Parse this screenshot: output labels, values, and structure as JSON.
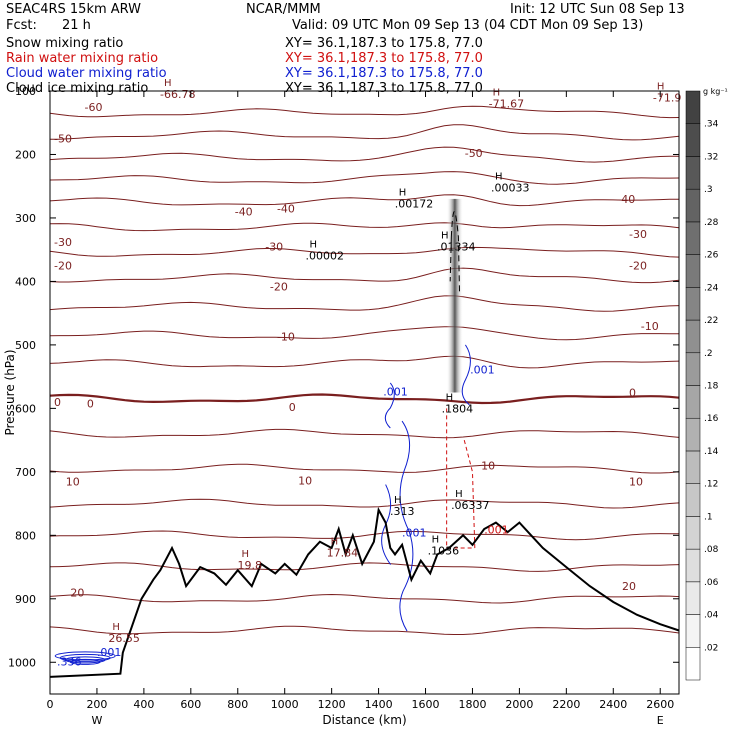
{
  "header": {
    "model": "SEAC4RS 15km ARW",
    "center": "NCAR/MMM",
    "init": "Init: 12 UTC Sun 08 Sep 13",
    "fcst_label": "Fcst:",
    "fcst_value": "21 h",
    "valid": "Valid: 09 UTC Mon 09 Sep 13 (04 CDT Mon 09 Sep 13)"
  },
  "fields": [
    {
      "name": "Snow mixing ratio",
      "xy": "XY=  36.1,187.3 to 175.8, 77.0",
      "color": "#000000"
    },
    {
      "name": "Rain water mixing ratio",
      "xy": "XY=  36.1,187.3 to 175.8, 77.0",
      "color": "#d01010"
    },
    {
      "name": "Cloud water mixing ratio",
      "xy": "XY=  36.1,187.3 to 175.8, 77.0",
      "color": "#1020d0"
    },
    {
      "name": "Cloud ice mixing ratio",
      "xy": "XY=  36.1,187.3 to 175.8, 77.0",
      "color": "#000000"
    }
  ],
  "chart_data": {
    "type": "cross-section contour",
    "xlabel": "Distance (km)",
    "ylabel": "Pressure (hPa)",
    "xlim": [
      0,
      2680
    ],
    "ylim_pressure": [
      100,
      1050
    ],
    "x_ticks": [
      "0",
      "200",
      "400",
      "600",
      "800",
      "1000",
      "1200",
      "1400",
      "1600",
      "1800",
      "2000",
      "2200",
      "2400",
      "2600"
    ],
    "y_ticks": [
      "100",
      "200",
      "300",
      "400",
      "500",
      "600",
      "700",
      "800",
      "900",
      "1000"
    ],
    "x_end_labels": {
      "left": "W",
      "right": "E"
    },
    "colorbar": {
      "unit": "g kg⁻¹",
      "ticks": [
        ".02",
        ".04",
        ".06",
        ".08",
        ".1",
        ".12",
        ".14",
        ".16",
        ".18",
        ".2",
        ".22",
        ".24",
        ".26",
        ".28",
        ".3",
        ".32",
        ".34"
      ]
    },
    "temperature_labels": [
      {
        "text": "-60",
        "x": 130,
        "p": 125
      },
      {
        "text": "-50",
        "x": 1750,
        "p": 198
      },
      {
        "text": "-50",
        "x": 0,
        "p": 175
      },
      {
        "text": "-40",
        "x": 770,
        "p": 290
      },
      {
        "text": "-40",
        "x": 950,
        "p": 285
      },
      {
        "text": "-40",
        "x": 2400,
        "p": 270
      },
      {
        "text": "-30",
        "x": 0,
        "p": 338
      },
      {
        "text": "-30",
        "x": 900,
        "p": 345
      },
      {
        "text": "-30",
        "x": 2450,
        "p": 325
      },
      {
        "text": "-20",
        "x": 0,
        "p": 375
      },
      {
        "text": "-20",
        "x": 920,
        "p": 408
      },
      {
        "text": "-20",
        "x": 2450,
        "p": 375
      },
      {
        "text": "-10",
        "x": 950,
        "p": 487
      },
      {
        "text": "-10",
        "x": 2500,
        "p": 470
      },
      {
        "text": "0",
        "x": 0,
        "p": 590
      },
      {
        "text": "0",
        "x": 140,
        "p": 592
      },
      {
        "text": "0",
        "x": 1000,
        "p": 598
      },
      {
        "text": "0",
        "x": 2450,
        "p": 575
      },
      {
        "text": "10",
        "x": 50,
        "p": 715
      },
      {
        "text": "10",
        "x": 1040,
        "p": 714
      },
      {
        "text": "10",
        "x": 1820,
        "p": 690
      },
      {
        "text": "10",
        "x": 2450,
        "p": 715
      },
      {
        "text": "20",
        "x": 70,
        "p": 890
      },
      {
        "text": "20",
        "x": 2420,
        "p": 880
      }
    ],
    "max_labels": [
      {
        "text": "-66.78",
        "x": 520,
        "p": 108
      },
      {
        "text": "-71.67",
        "x": 1920,
        "p": 123
      },
      {
        "text": "-71.9",
        "x": 2620,
        "p": 113
      },
      {
        "text": ".00172",
        "x": 1520,
        "p": 280
      },
      {
        "text": ".00033",
        "x": 1930,
        "p": 255
      },
      {
        "text": ".00002",
        "x": 1140,
        "p": 362
      },
      {
        "text": ".01334",
        "x": 1700,
        "p": 348
      },
      {
        "text": ".1804",
        "x": 1720,
        "p": 603
      },
      {
        "text": ".06337",
        "x": 1760,
        "p": 755
      },
      {
        "text": ".313",
        "x": 1500,
        "p": 765
      },
      {
        "text": ".1036",
        "x": 1660,
        "p": 827
      },
      {
        "text": "19.8",
        "x": 850,
        "p": 850
      },
      {
        "text": "17.84",
        "x": 1230,
        "p": 830
      },
      {
        "text": "26.55",
        "x": 300,
        "p": 965
      }
    ],
    "cloud_water_labels": [
      {
        "text": ".001",
        "x": 1420,
        "p": 580
      },
      {
        "text": ".001",
        "x": 1790,
        "p": 545
      },
      {
        "text": ".001",
        "x": 1500,
        "p": 802
      },
      {
        "text": ".001",
        "x": 200,
        "p": 990
      },
      {
        "text": ".336",
        "x": 30,
        "p": 1005
      }
    ],
    "rain_labels": [
      {
        "text": ".001",
        "x": 1850,
        "p": 797
      }
    ],
    "terrain_p": [
      [
        0,
        1023
      ],
      [
        300,
        1018
      ],
      [
        310,
        985
      ],
      [
        390,
        900
      ],
      [
        440,
        870
      ],
      [
        470,
        855
      ],
      [
        520,
        820
      ],
      [
        550,
        845
      ],
      [
        580,
        880
      ],
      [
        640,
        850
      ],
      [
        700,
        860
      ],
      [
        750,
        878
      ],
      [
        800,
        855
      ],
      [
        860,
        880
      ],
      [
        900,
        845
      ],
      [
        960,
        860
      ],
      [
        1000,
        845
      ],
      [
        1050,
        862
      ],
      [
        1100,
        830
      ],
      [
        1150,
        810
      ],
      [
        1200,
        820
      ],
      [
        1230,
        790
      ],
      [
        1260,
        830
      ],
      [
        1290,
        800
      ],
      [
        1330,
        845
      ],
      [
        1380,
        810
      ],
      [
        1400,
        760
      ],
      [
        1430,
        780
      ],
      [
        1450,
        820
      ],
      [
        1470,
        830
      ],
      [
        1500,
        815
      ],
      [
        1540,
        870
      ],
      [
        1580,
        840
      ],
      [
        1620,
        860
      ],
      [
        1650,
        830
      ],
      [
        1700,
        820
      ],
      [
        1760,
        800
      ],
      [
        1800,
        815
      ],
      [
        1850,
        790
      ],
      [
        1900,
        780
      ],
      [
        1950,
        795
      ],
      [
        2000,
        780
      ],
      [
        2050,
        800
      ],
      [
        2100,
        820
      ],
      [
        2200,
        850
      ],
      [
        2300,
        880
      ],
      [
        2400,
        905
      ],
      [
        2500,
        925
      ],
      [
        2600,
        940
      ],
      [
        2680,
        950
      ]
    ]
  }
}
